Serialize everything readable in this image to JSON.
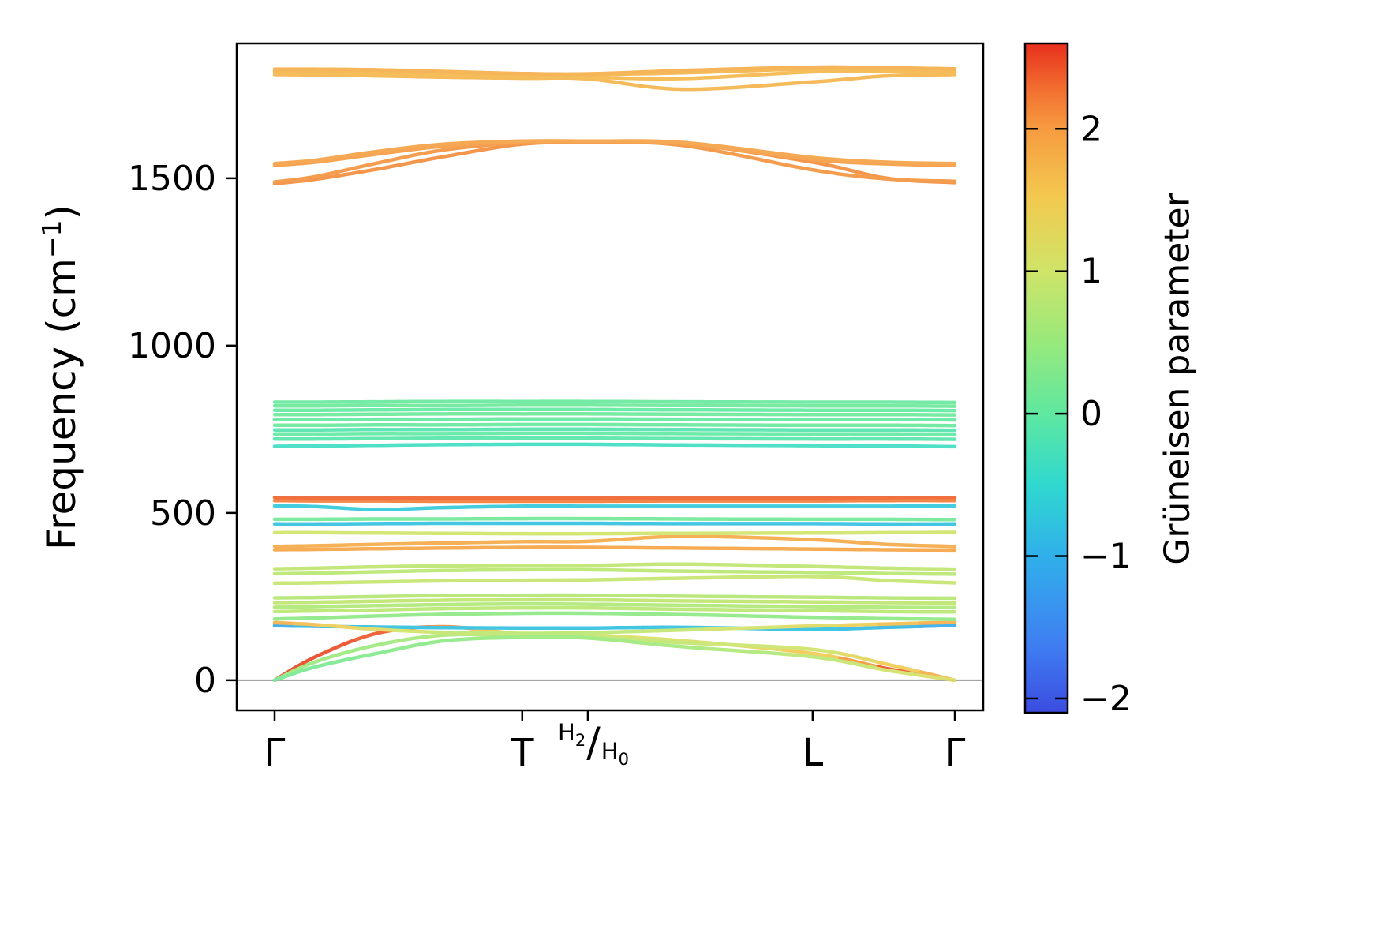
{
  "chart_data": {
    "type": "line",
    "title": "",
    "ylabel": "Frequency (cm⁻¹)",
    "ylabel_parts": {
      "pre": "Frequency (cm",
      "sup": "−1",
      "post": ")"
    },
    "ylim": [
      -90,
      1903
    ],
    "yticks": [
      0,
      500,
      1000,
      1500
    ],
    "ytick_labels": [
      "0",
      "500",
      "1000",
      "1500"
    ],
    "x_ticks": [
      {
        "label": "Γ",
        "pos": 0
      },
      {
        "label": "T",
        "pos": 0.364
      },
      {
        "label": "H2/H0",
        "pos": 0.4605,
        "overlay": true
      },
      {
        "label": "L",
        "pos": 0.791
      },
      {
        "label": "Γ",
        "pos": 1
      }
    ],
    "x_special_label": {
      "top_base": "H",
      "top_sub": "2",
      "slash": "/",
      "bottom_base": "H",
      "bottom_sub": "0"
    },
    "zero_line": {
      "value": 0,
      "color": "#999999"
    },
    "grid": false,
    "colorbar": {
      "label": "Grüneisen parameter",
      "vmin": -2.1,
      "vmax": 2.6,
      "tick_values": [
        2,
        1,
        0,
        -1,
        -2
      ],
      "tick_labels": [
        "2",
        "1",
        "0",
        "−1",
        "−2"
      ]
    },
    "colormap": [
      {
        "t": 0.0,
        "c": "#3b4ce0"
      },
      {
        "t": 0.1,
        "c": "#3f7ef2"
      },
      {
        "t": 0.235,
        "c": "#30b0ea"
      },
      {
        "t": 0.34,
        "c": "#2fd8cf"
      },
      {
        "t": 0.447,
        "c": "#5fe8a0"
      },
      {
        "t": 0.55,
        "c": "#96e97c"
      },
      {
        "t": 0.66,
        "c": "#cfe468"
      },
      {
        "t": 0.77,
        "c": "#f3c94f"
      },
      {
        "t": 0.872,
        "c": "#f69b40"
      },
      {
        "t": 0.93,
        "c": "#f27030"
      },
      {
        "t": 1.0,
        "c": "#e8301d"
      }
    ],
    "x_nodes": [
      0,
      0.06,
      0.15,
      0.25,
      0.364,
      0.4605,
      0.6,
      0.791,
      0.9,
      1
    ],
    "bands": [
      {
        "f": [
          0,
          70,
          140,
          160,
          138,
          135,
          118,
          80,
          35,
          0
        ],
        "g": [
          2.5,
          2.5,
          2.4,
          2.2,
          1.2,
          1.1,
          1.1,
          1.5,
          2.4,
          2.6
        ]
      },
      {
        "f": [
          0,
          55,
          105,
          135,
          133,
          130,
          112,
          92,
          48,
          0
        ],
        "g": [
          0.6,
          0.5,
          0.5,
          0.7,
          0.8,
          0.8,
          0.9,
          1.0,
          1.4,
          2.0
        ]
      },
      {
        "f": [
          0,
          40,
          80,
          118,
          128,
          126,
          100,
          70,
          30,
          0
        ],
        "g": [
          0.2,
          0.2,
          0.3,
          0.4,
          0.5,
          0.5,
          0.6,
          0.8,
          1.0,
          1.2
        ]
      },
      {
        "f": [
          163,
          161,
          159,
          157,
          156,
          156,
          158,
          152,
          158,
          164
        ],
        "g": [
          -1.2,
          -0.9,
          -0.8,
          -0.8,
          -0.8,
          -0.8,
          -0.8,
          -0.8,
          -0.9,
          -1.1
        ]
      },
      {
        "f": [
          172,
          166,
          152,
          143,
          140,
          142,
          150,
          162,
          168,
          173
        ],
        "g": [
          1.9,
          1.6,
          1.2,
          0.9,
          0.8,
          0.8,
          0.9,
          1.2,
          1.6,
          1.9
        ]
      },
      {
        "f": [
          183,
          186,
          192,
          197,
          200,
          200,
          196,
          188,
          184,
          182
        ],
        "g": 0.4
      },
      {
        "f": [
          205,
          207,
          210,
          214,
          216,
          216,
          212,
          208,
          205,
          204
        ],
        "g": 0.8
      },
      {
        "f": [
          218,
          220,
          223,
          226,
          228,
          227,
          224,
          220,
          218,
          217
        ],
        "g": 0.7
      },
      {
        "f": [
          232,
          233,
          236,
          239,
          240,
          240,
          237,
          234,
          232,
          231
        ],
        "g": 0.85
      },
      {
        "f": [
          246,
          247,
          250,
          253,
          254,
          254,
          251,
          248,
          246,
          245
        ],
        "g": 0.75
      },
      {
        "f": [
          290,
          291,
          294,
          297,
          299,
          300,
          305,
          310,
          298,
          291
        ],
        "g": 0.9
      },
      {
        "f": [
          318,
          320,
          324,
          328,
          330,
          330,
          326,
          322,
          319,
          317
        ],
        "g": 0.8
      },
      {
        "f": [
          333,
          335,
          339,
          342,
          343,
          343,
          347,
          340,
          335,
          332
        ],
        "g": 0.85
      },
      {
        "f": [
          390,
          391,
          393,
          395,
          397,
          397,
          395,
          392,
          390,
          389
        ],
        "g": 1.9
      },
      {
        "f": [
          400,
          402,
          406,
          410,
          414,
          415,
          430,
          420,
          406,
          400
        ],
        "g": 1.85
      },
      {
        "f": [
          441,
          441,
          440,
          439,
          438,
          438,
          439,
          440,
          441,
          442
        ],
        "g": 1.0
      },
      {
        "f": [
          467,
          467,
          468,
          469,
          469,
          469,
          468,
          468,
          467,
          467
        ],
        "g": -0.8
      },
      {
        "f": [
          481,
          481,
          482,
          482,
          483,
          483,
          482,
          481,
          481,
          480
        ],
        "g": 0.15
      },
      {
        "f": [
          521,
          519,
          510,
          516,
          520,
          520,
          520,
          520,
          520,
          521
        ],
        "g": -0.7
      },
      {
        "f": [
          537,
          536,
          536,
          535,
          535,
          535,
          536,
          536,
          537,
          537
        ],
        "g": 2.2
      },
      {
        "f": [
          546,
          545,
          545,
          544,
          544,
          544,
          545,
          545,
          546,
          546
        ],
        "g": 2.35
      },
      {
        "f": [
          699,
          700,
          702,
          704,
          705,
          705,
          703,
          701,
          700,
          698
        ],
        "g": -0.35
      },
      {
        "f": [
          721,
          721,
          722,
          723,
          723,
          723,
          722,
          721,
          721,
          720
        ],
        "g": -0.1
      },
      {
        "f": [
          736,
          736,
          737,
          737,
          738,
          738,
          737,
          736,
          736,
          735
        ],
        "g": 0.0
      },
      {
        "f": [
          748,
          748,
          749,
          749,
          750,
          750,
          749,
          748,
          748,
          747
        ],
        "g": -0.15
      },
      {
        "f": [
          762,
          762,
          763,
          763,
          764,
          764,
          763,
          762,
          762,
          761
        ],
        "g": 0.05
      },
      {
        "f": [
          779,
          779,
          780,
          780,
          781,
          781,
          780,
          779,
          779,
          778
        ],
        "g": 0.0
      },
      {
        "f": [
          794,
          794,
          795,
          796,
          796,
          796,
          795,
          794,
          794,
          793
        ],
        "g": 0.1
      },
      {
        "f": [
          807,
          807,
          808,
          809,
          809,
          809,
          808,
          807,
          807,
          806
        ],
        "g": 0.0
      },
      {
        "f": [
          820,
          820,
          821,
          821,
          822,
          822,
          821,
          820,
          820,
          819
        ],
        "g": 0.1
      },
      {
        "f": [
          831,
          831,
          832,
          833,
          833,
          833,
          832,
          831,
          831,
          830
        ],
        "g": 0.05
      },
      {
        "f": [
          1484,
          1497,
          1527,
          1565,
          1602,
          1607,
          1604,
          1548,
          1500,
          1487
        ],
        "g": 2.1
      },
      {
        "f": [
          1489,
          1505,
          1545,
          1585,
          1606,
          1608,
          1598,
          1525,
          1498,
          1491
        ],
        "g": 2.05
      },
      {
        "f": [
          1539,
          1548,
          1572,
          1596,
          1609,
          1610,
          1604,
          1556,
          1543,
          1539
        ],
        "g": 2.0
      },
      {
        "f": [
          1544,
          1554,
          1580,
          1602,
          1611,
          1611,
          1607,
          1562,
          1548,
          1544
        ],
        "g": 1.95
      },
      {
        "f": [
          1810,
          1809,
          1806,
          1802,
          1799,
          1797,
          1766,
          1788,
          1806,
          1810
        ],
        "g": 1.75
      },
      {
        "f": [
          1815,
          1814,
          1812,
          1809,
          1806,
          1802,
          1798,
          1818,
          1820,
          1816
        ],
        "g": 1.7
      },
      {
        "f": [
          1821,
          1820,
          1818,
          1814,
          1811,
          1810,
          1815,
          1827,
          1825,
          1821
        ],
        "g": 1.75
      },
      {
        "f": [
          1826,
          1826,
          1824,
          1819,
          1813,
          1812,
          1822,
          1832,
          1830,
          1827
        ],
        "g": 1.8
      }
    ]
  }
}
